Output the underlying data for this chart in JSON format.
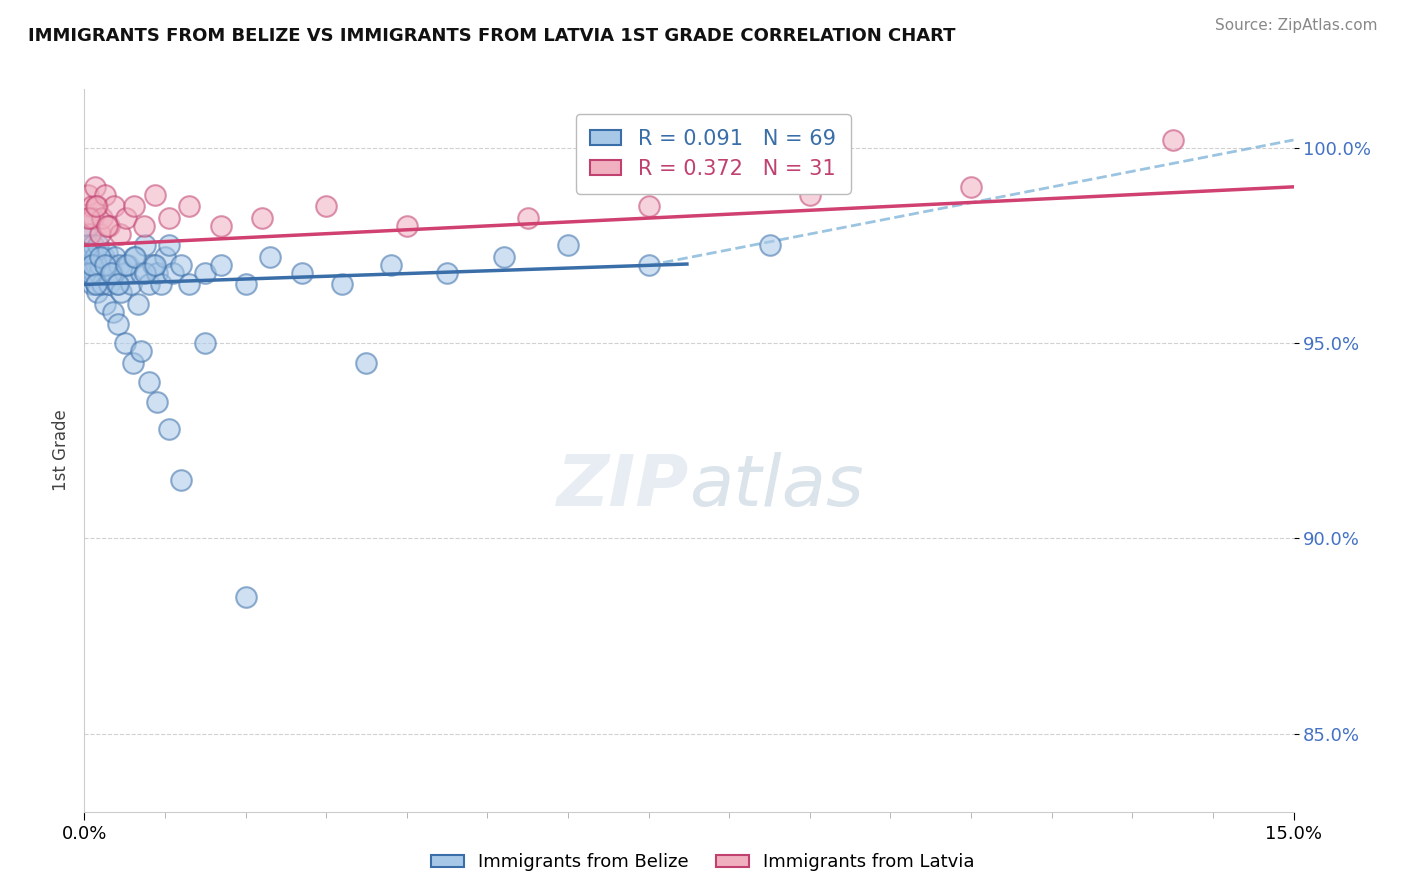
{
  "title": "IMMIGRANTS FROM BELIZE VS IMMIGRANTS FROM LATVIA 1ST GRADE CORRELATION CHART",
  "source": "Source: ZipAtlas.com",
  "ylabel": "1st Grade",
  "xlim": [
    0.0,
    15.0
  ],
  "ylim": [
    83.0,
    101.5
  ],
  "yticks": [
    85.0,
    90.0,
    95.0,
    100.0
  ],
  "ytick_labels": [
    "85.0%",
    "90.0%",
    "95.0%",
    "100.0%"
  ],
  "xtick_labels": [
    "0.0%",
    "15.0%"
  ],
  "belize_color": "#a8c8e8",
  "belize_edge_color": "#3a6ea8",
  "latvia_color": "#f0b0c0",
  "latvia_edge_color": "#c04070",
  "belize_line_color": "#3a6ea8",
  "latvia_line_color": "#d04070",
  "dash_color": "#7ab0d8",
  "R_belize_text": "R = 0.091",
  "N_belize_text": "N = 69",
  "R_latvia_text": "R = 0.372",
  "N_latvia_text": "N = 31",
  "legend_label_belize": "Immigrants from Belize",
  "legend_label_latvia": "Immigrants from Latvia",
  "belize_x": [
    0.02,
    0.03,
    0.04,
    0.05,
    0.06,
    0.07,
    0.08,
    0.09,
    0.1,
    0.11,
    0.12,
    0.13,
    0.14,
    0.15,
    0.16,
    0.17,
    0.18,
    0.2,
    0.22,
    0.24,
    0.26,
    0.28,
    0.3,
    0.32,
    0.35,
    0.38,
    0.4,
    0.43,
    0.46,
    0.5,
    0.54,
    0.58,
    0.62,
    0.66,
    0.7,
    0.75,
    0.8,
    0.85,
    0.9,
    0.95,
    1.0,
    1.1,
    1.2,
    1.3,
    1.5,
    1.7,
    2.0,
    2.3,
    2.7,
    3.2,
    3.8,
    4.5,
    5.2,
    6.0,
    7.0,
    8.5,
    0.04,
    0.07,
    0.1,
    0.14,
    0.19,
    0.25,
    0.33,
    0.42,
    0.52,
    0.63,
    0.75,
    0.88,
    1.05
  ],
  "belize_y": [
    97.8,
    97.2,
    98.0,
    97.5,
    97.0,
    96.8,
    97.3,
    96.5,
    97.0,
    97.5,
    96.8,
    97.2,
    96.5,
    97.0,
    96.3,
    97.5,
    96.8,
    97.0,
    96.5,
    97.2,
    96.0,
    97.3,
    96.5,
    97.0,
    96.8,
    97.2,
    96.5,
    97.0,
    96.3,
    96.8,
    97.0,
    96.5,
    97.2,
    96.0,
    96.8,
    97.5,
    96.5,
    97.0,
    96.8,
    96.5,
    97.2,
    96.8,
    97.0,
    96.5,
    96.8,
    97.0,
    96.5,
    97.2,
    96.8,
    96.5,
    97.0,
    96.8,
    97.2,
    97.5,
    97.0,
    97.5,
    97.3,
    96.8,
    97.0,
    96.5,
    97.2,
    97.0,
    96.8,
    96.5,
    97.0,
    97.2,
    96.8,
    97.0,
    97.5
  ],
  "belize_outlier_x": [
    0.35,
    0.42,
    0.5,
    0.6,
    0.7,
    0.8,
    0.9,
    1.05,
    1.2,
    1.5,
    2.0,
    3.5
  ],
  "belize_outlier_y": [
    95.8,
    95.5,
    95.0,
    94.5,
    94.8,
    94.0,
    93.5,
    92.8,
    91.5,
    95.0,
    88.5,
    94.5
  ],
  "latvia_x": [
    0.03,
    0.05,
    0.07,
    0.09,
    0.11,
    0.13,
    0.16,
    0.19,
    0.22,
    0.26,
    0.31,
    0.37,
    0.44,
    0.52,
    0.62,
    0.74,
    0.88,
    1.05,
    1.3,
    1.7,
    2.2,
    3.0,
    4.0,
    5.5,
    7.0,
    9.0,
    11.0,
    13.5,
    0.06,
    0.14,
    0.28
  ],
  "latvia_y": [
    98.2,
    98.8,
    97.8,
    98.5,
    98.2,
    99.0,
    98.5,
    97.8,
    98.2,
    98.8,
    98.0,
    98.5,
    97.8,
    98.2,
    98.5,
    98.0,
    98.8,
    98.2,
    98.5,
    98.0,
    98.2,
    98.5,
    98.0,
    98.2,
    98.5,
    98.8,
    99.0,
    100.2,
    98.2,
    98.5,
    98.0
  ]
}
